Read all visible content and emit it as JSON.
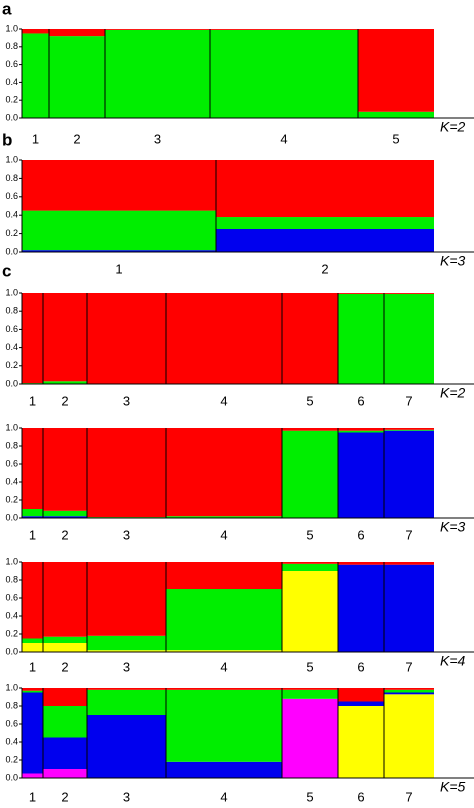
{
  "chart_data": [
    {
      "type": "structure",
      "panel": "a",
      "k_label": "K=2",
      "categories": [
        "1",
        "2",
        "3",
        "4",
        "5"
      ],
      "sizes": [
        27,
        56,
        105,
        148,
        76
      ],
      "series": [
        {
          "color": "#00ee00",
          "values": [
            0.95,
            0.92,
            0.99,
            0.99,
            0.07
          ]
        },
        {
          "color": "#ff0000",
          "values": [
            0.05,
            0.08,
            0.01,
            0.01,
            0.93
          ]
        }
      ],
      "ylim": [
        0,
        1
      ],
      "yticks": [
        {
          "value": 0,
          "label": "0.0"
        },
        0.2,
        0.4,
        0.6,
        0.8,
        {
          "value": 1,
          "label": "1.0"
        }
      ]
    },
    {
      "type": "structure",
      "panel": "b",
      "k_label": "K=3",
      "categories": [
        "1",
        "2"
      ],
      "sizes": [
        194,
        218
      ],
      "series": [
        {
          "color": "#0000ee",
          "values": [
            0.02,
            0.25
          ]
        },
        {
          "color": "#00ee00",
          "values": [
            0.43,
            0.13
          ]
        },
        {
          "color": "#ff0000",
          "values": [
            0.55,
            0.62
          ]
        }
      ],
      "ylim": [
        0,
        1
      ],
      "yticks": [
        {
          "value": 0,
          "label": "0.0"
        },
        0.2,
        0.4,
        0.6,
        0.8,
        {
          "value": 1,
          "label": "1.0"
        }
      ]
    },
    {
      "type": "structure",
      "panel": "c",
      "k_label": "K=2",
      "categories": [
        "1",
        "2",
        "3",
        "4",
        "5",
        "6",
        "7"
      ],
      "sizes": [
        21,
        44,
        79,
        116,
        56,
        46,
        50
      ],
      "series": [
        {
          "color": "#00ee00",
          "values": [
            0.01,
            0.03,
            0,
            0,
            0,
            0.99,
            0.99
          ]
        },
        {
          "color": "#ff0000",
          "values": [
            0.99,
            0.97,
            1,
            1,
            1,
            0.01,
            0.01
          ]
        }
      ],
      "ylim": [
        0,
        1
      ],
      "yticks": [
        {
          "value": 0,
          "label": "0.0"
        },
        0.2,
        0.4,
        0.6,
        0.8,
        {
          "value": 1,
          "label": "1.0"
        }
      ]
    },
    {
      "type": "structure",
      "k_label": "K=3",
      "categories": [
        "1",
        "2",
        "3",
        "4",
        "5",
        "6",
        "7"
      ],
      "sizes": [
        21,
        44,
        79,
        116,
        56,
        46,
        50
      ],
      "series": [
        {
          "color": "#0000ee",
          "values": [
            0.02,
            0.02,
            0,
            0,
            0,
            0.95,
            0.97
          ]
        },
        {
          "color": "#00ee00",
          "values": [
            0.08,
            0.06,
            0.01,
            0.02,
            0.97,
            0.02,
            0.01
          ]
        },
        {
          "color": "#ff0000",
          "values": [
            0.9,
            0.92,
            0.99,
            0.98,
            0.03,
            0.03,
            0.02
          ]
        }
      ],
      "ylim": [
        0,
        1
      ],
      "yticks": [
        {
          "value": 0,
          "label": "0.0"
        },
        0.2,
        0.4,
        0.6,
        0.8,
        {
          "value": 1,
          "label": "1.0"
        }
      ]
    },
    {
      "type": "structure",
      "k_label": "K=4",
      "categories": [
        "1",
        "2",
        "3",
        "4",
        "5",
        "6",
        "7"
      ],
      "sizes": [
        21,
        44,
        79,
        116,
        56,
        46,
        50
      ],
      "series": [
        {
          "color": "#ffff00",
          "values": [
            0.1,
            0.1,
            0.02,
            0.02,
            0.9,
            0,
            0
          ]
        },
        {
          "color": "#0000ee",
          "values": [
            0,
            0,
            0,
            0,
            0,
            0.97,
            0.97
          ]
        },
        {
          "color": "#00ee00",
          "values": [
            0.05,
            0.07,
            0.16,
            0.68,
            0.08,
            0,
            0
          ]
        },
        {
          "color": "#ff0000",
          "values": [
            0.85,
            0.83,
            0.82,
            0.3,
            0.02,
            0.03,
            0.03
          ]
        }
      ],
      "ylim": [
        0,
        1
      ],
      "yticks": [
        {
          "value": 0,
          "label": "0.0"
        },
        0.2,
        0.4,
        0.6,
        0.8,
        {
          "value": 1,
          "label": "1.0"
        }
      ]
    },
    {
      "type": "structure",
      "k_label": "K=5",
      "categories": [
        "1",
        "2",
        "3",
        "4",
        "5",
        "6",
        "7"
      ],
      "sizes": [
        21,
        44,
        79,
        116,
        56,
        46,
        50
      ],
      "series": [
        {
          "color": "#ff00ff",
          "values": [
            0.05,
            0.1,
            0,
            0,
            0.88,
            0,
            0
          ]
        },
        {
          "color": "#ffff00",
          "values": [
            0,
            0,
            0,
            0,
            0,
            0.8,
            0.93
          ]
        },
        {
          "color": "#0000ee",
          "values": [
            0.9,
            0.35,
            0.7,
            0.18,
            0,
            0.05,
            0.02
          ]
        },
        {
          "color": "#00ee00",
          "values": [
            0.02,
            0.35,
            0.28,
            0.8,
            0.1,
            0,
            0.03
          ]
        },
        {
          "color": "#ff0000",
          "values": [
            0.03,
            0.2,
            0.02,
            0.02,
            0.02,
            0.15,
            0.02
          ]
        }
      ],
      "ylim": [
        0,
        1
      ],
      "yticks": [
        {
          "value": 0,
          "label": "0.0"
        },
        0.2,
        0.4,
        0.6,
        0.8,
        {
          "value": 1,
          "label": "1.0"
        }
      ]
    }
  ]
}
